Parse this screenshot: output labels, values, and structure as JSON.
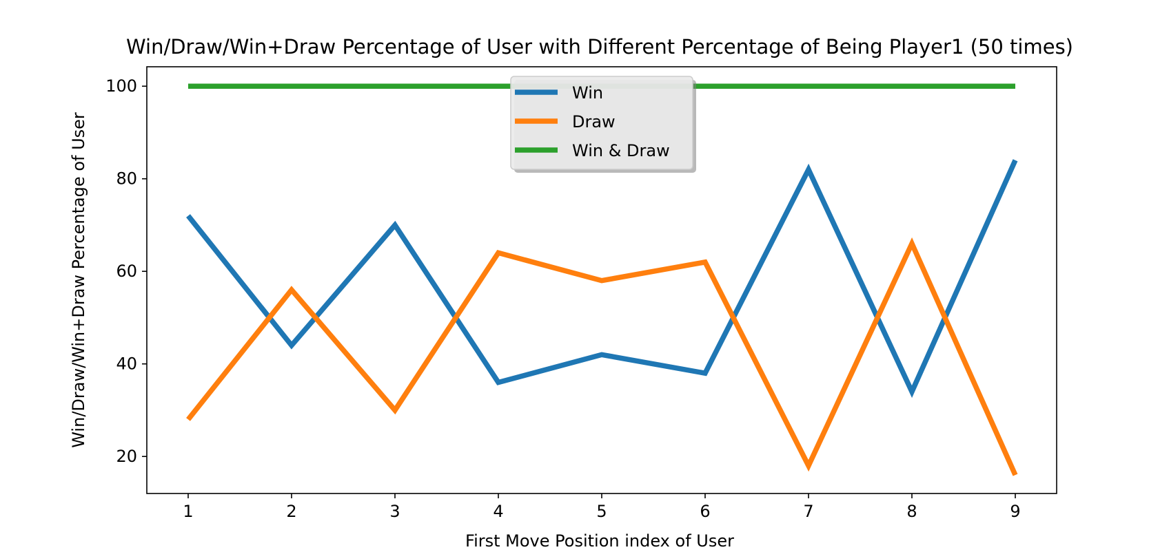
{
  "chart_data": {
    "type": "line",
    "title": "Win/Draw/Win+Draw Percentage of User with Different Percentage of Being Player1 (50 times)",
    "xlabel": "First Move Position index of User",
    "ylabel": "Win/Draw/Win+Draw Percentage of User",
    "x": [
      1,
      2,
      3,
      4,
      5,
      6,
      7,
      8,
      9
    ],
    "xlim": [
      0.6,
      9.4
    ],
    "ylim": [
      12,
      104.2
    ],
    "xticks": [
      1,
      2,
      3,
      4,
      5,
      6,
      7,
      8,
      9
    ],
    "yticks": [
      20,
      40,
      60,
      80,
      100
    ],
    "grid": false,
    "legend_position": "top-center",
    "series": [
      {
        "name": "Win",
        "color": "#1f77b4",
        "values": [
          72,
          44,
          70,
          36,
          42,
          38,
          82,
          34,
          84
        ]
      },
      {
        "name": "Draw",
        "color": "#ff7f0e",
        "values": [
          28,
          56,
          30,
          64,
          58,
          62,
          18,
          66,
          16
        ]
      },
      {
        "name": "Win & Draw",
        "color": "#2ca02c",
        "values": [
          100,
          100,
          100,
          100,
          100,
          100,
          100,
          100,
          100
        ]
      }
    ]
  }
}
